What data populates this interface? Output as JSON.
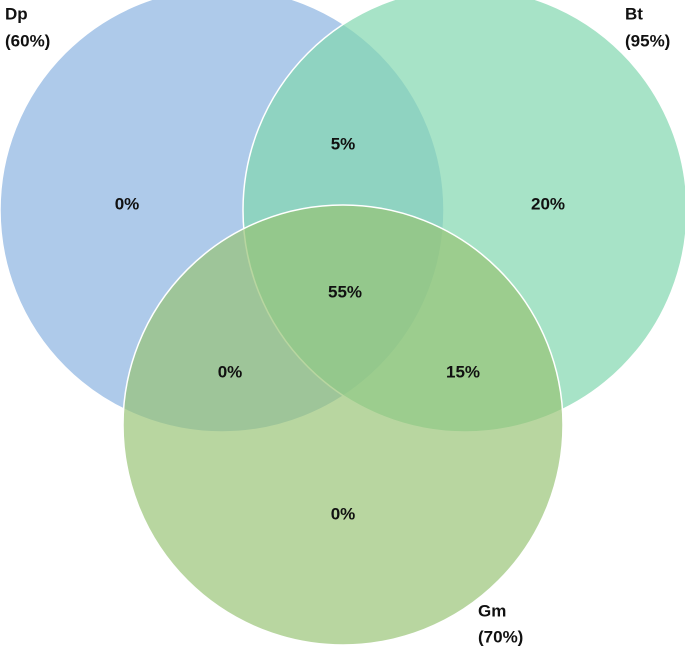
{
  "sets": [
    {
      "name": "Dp",
      "share": "(60%)"
    },
    {
      "name": "Bt",
      "share": "(95%)"
    },
    {
      "name": "Gm",
      "share": "(70%)"
    }
  ],
  "regions": [
    {
      "label": "0%"
    },
    {
      "label": "5%"
    },
    {
      "label": "20%"
    },
    {
      "label": "55%"
    },
    {
      "label": "0%"
    },
    {
      "label": "15%"
    },
    {
      "label": "0%"
    }
  ]
}
